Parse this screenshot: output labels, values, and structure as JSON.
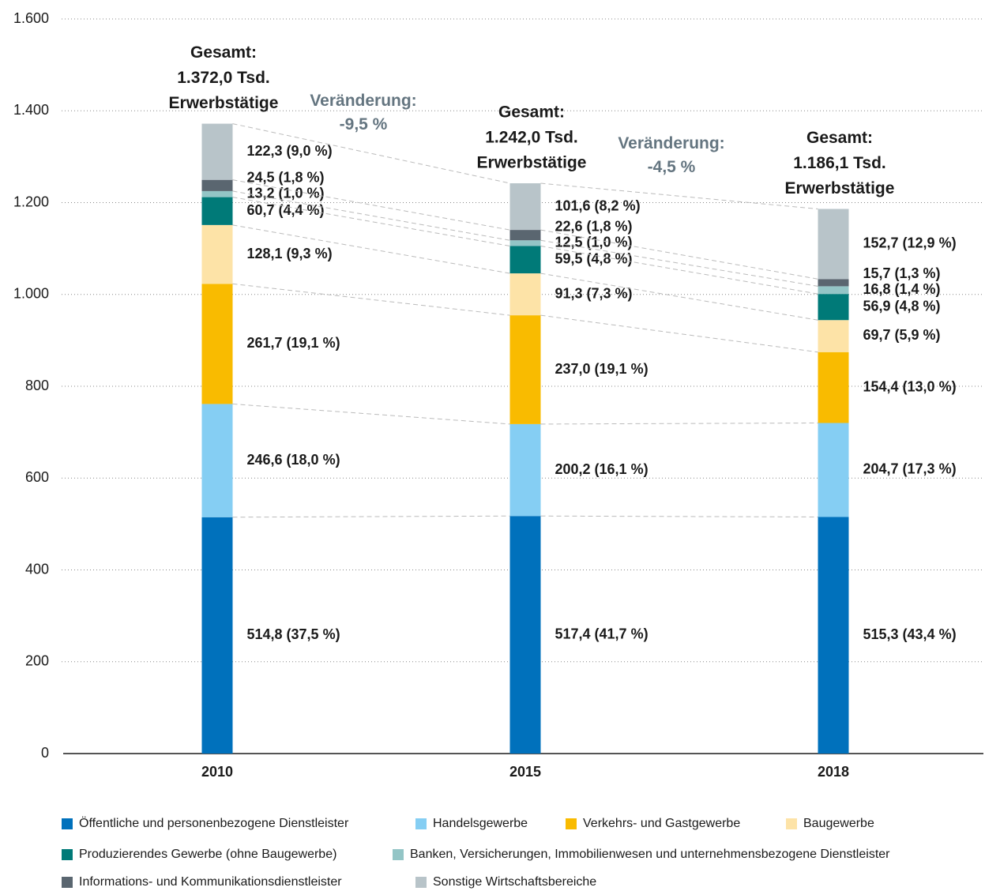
{
  "chart_data": {
    "type": "stacked_bar",
    "categories": [
      "2010",
      "2015",
      "2018"
    ],
    "ylim": [
      0,
      1600
    ],
    "yticks": [
      0,
      200,
      400,
      600,
      800,
      {
        "value": 1000,
        "label": "1.000"
      },
      {
        "value": 1200,
        "label": "1.200"
      },
      {
        "value": 1400,
        "label": "1.400"
      },
      {
        "value": 1600,
        "label": "1.600"
      }
    ],
    "grid": true,
    "series": [
      {
        "name": "Öffentliche und personenbezogene Dienstleister",
        "color": "#0071bc",
        "values": [
          514.8,
          517.4,
          515.3
        ],
        "value_labels": [
          "514,8 (37,5 %)",
          "517,4 (41,7 %)",
          "515,3 (43,4 %)"
        ]
      },
      {
        "name": "Handelsgewerbe",
        "color": "#85cef3",
        "values": [
          246.6,
          200.2,
          204.7
        ],
        "value_labels": [
          "246,6 (18,0 %)",
          "200,2 (16,1 %)",
          "204,7 (17,3 %)"
        ]
      },
      {
        "name": "Verkehrs- und Gastgewerbe",
        "color": "#f9bb00",
        "values": [
          261.7,
          237.0,
          154.4
        ],
        "value_labels": [
          "261,7 (19,1 %)",
          "237,0 (19,1 %)",
          "154,4 (13,0 %)"
        ]
      },
      {
        "name": "Baugewerbe",
        "color": "#fde3a7",
        "values": [
          128.1,
          91.3,
          69.7
        ],
        "value_labels": [
          "128,1 (9,3 %)",
          "91,3 (7,3 %)",
          "69,7 (5,9 %)"
        ]
      },
      {
        "name": "Produzierendes Gewerbe (ohne Baugewerbe)",
        "color": "#007a78",
        "values": [
          60.7,
          59.5,
          56.9
        ],
        "value_labels": [
          "60,7 (4,4 %)",
          "59,5 (4,8 %)",
          "56,9 (4,8 %)"
        ]
      },
      {
        "name": "Banken, Versicherungen, Immobilienwesen und unternehmensbezogene Dienstleister",
        "color": "#93c5c6",
        "values": [
          13.2,
          12.5,
          16.8
        ],
        "value_labels": [
          "13,2 (1,0 %)",
          "12,5 (1,0 %)",
          "16,8 (1,4 %)"
        ]
      },
      {
        "name": "Informations- und Kommunikationsdienstleister",
        "color": "#5a6670",
        "values": [
          24.5,
          22.6,
          15.7
        ],
        "value_labels": [
          "24,5 (1,8 %)",
          "22,6 (1,8 %)",
          "15,7 (1,3 %)"
        ]
      },
      {
        "name": "Sonstige Wirtschaftsbereiche",
        "color": "#b8c4c9",
        "values": [
          122.3,
          101.6,
          152.7
        ],
        "value_labels": [
          "122,3 (9,0 %)",
          "101,6 (8,2 %)",
          "152,7 (12,9 %)"
        ]
      }
    ],
    "totals": [
      [
        "Gesamt:",
        "1.372,0 Tsd.",
        "Erwerbstätige"
      ],
      [
        "Gesamt:",
        "1.242,0 Tsd.",
        "Erwerbstätige"
      ],
      [
        "Gesamt:",
        "1.186,1 Tsd.",
        "Erwerbstätige"
      ]
    ],
    "changes": [
      [
        "Veränderung:",
        "-9,5 %"
      ],
      [
        "Veränderung:",
        "-4,5 %"
      ]
    ]
  }
}
